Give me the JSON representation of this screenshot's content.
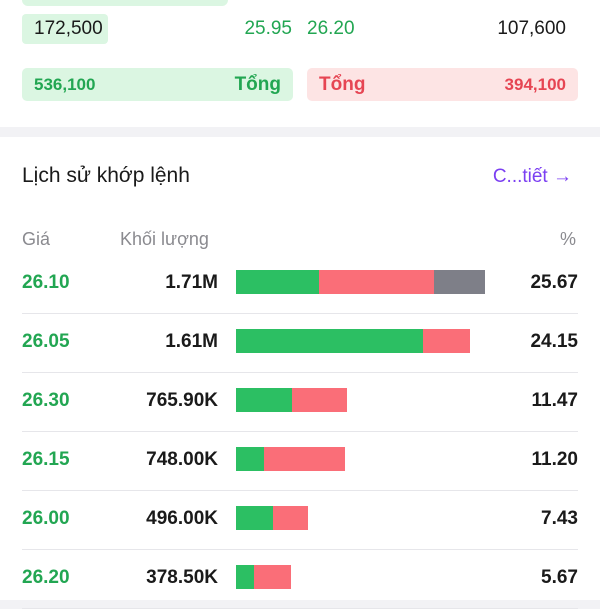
{
  "orderbook_row": {
    "bid_volume": "172,500",
    "bid_price": "25.95",
    "ask_price": "26.20",
    "ask_volume": "107,600"
  },
  "totals": {
    "buy_value": "536,100",
    "buy_label": "Tổng",
    "sell_label": "Tổng",
    "sell_value": "394,100"
  },
  "history": {
    "title": "Lịch sử khớp lệnh",
    "detail_link": "C...tiết →",
    "col_price": "Giá",
    "col_volume": "Khối lượng",
    "col_pct": "%",
    "rows": [
      {
        "price": "26.10",
        "volume": "1.71M",
        "pct": "25.67",
        "buy_share": 0.333,
        "sell_share": 0.461,
        "other_share": 0.206
      },
      {
        "price": "26.05",
        "volume": "1.61M",
        "pct": "24.15",
        "buy_share": 0.8,
        "sell_share": 0.2,
        "other_share": 0
      },
      {
        "price": "26.30",
        "volume": "765.90K",
        "pct": "11.47",
        "buy_share": 0.5,
        "sell_share": 0.5,
        "other_share": 0
      },
      {
        "price": "26.15",
        "volume": "748.00K",
        "pct": "11.20",
        "buy_share": 0.26,
        "sell_share": 0.74,
        "other_share": 0
      },
      {
        "price": "26.00",
        "volume": "496.00K",
        "pct": "7.43",
        "buy_share": 0.52,
        "sell_share": 0.48,
        "other_share": 0
      },
      {
        "price": "26.20",
        "volume": "378.50K",
        "pct": "5.67",
        "buy_share": 0.33,
        "sell_share": 0.67,
        "other_share": 0
      }
    ]
  },
  "colors": {
    "buy": "#2cbf63",
    "sell": "#fa6e78",
    "other": "#7e7f88",
    "accent": "#7b3ff2"
  }
}
